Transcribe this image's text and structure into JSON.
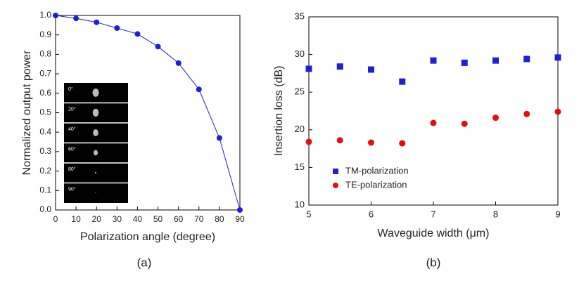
{
  "chart_data": [
    {
      "type": "line",
      "x_label": "Polarization angle (degree)",
      "y_label": "Normalized output power",
      "caption": "(a)",
      "x": [
        0,
        10,
        20,
        30,
        40,
        50,
        60,
        70,
        80,
        90
      ],
      "series": [
        {
          "color": "#1f1fd6",
          "values": [
            1.0,
            0.985,
            0.965,
            0.935,
            0.905,
            0.84,
            0.755,
            0.62,
            0.37,
            0.0
          ]
        }
      ],
      "xlim": [
        0,
        90
      ],
      "xticks": [
        0,
        10,
        20,
        30,
        40,
        50,
        60,
        70,
        80,
        90
      ],
      "ylim": [
        0,
        1.0
      ],
      "yticks": [
        {
          "value": 0,
          "label": "0.0"
        },
        0.1,
        0.2,
        0.3,
        0.4,
        0.5,
        0.6,
        0.7,
        0.8,
        0.9,
        {
          "value": 1.0,
          "label": "1.0"
        }
      ],
      "inset_labels": [
        "0°",
        "20°",
        "40°",
        "60°",
        "80°",
        "90°"
      ]
    },
    {
      "type": "scatter",
      "x_label": "Waveguide width (μm)",
      "y_label": "Insertion loss (dB)",
      "caption": "(b)",
      "x": [
        5,
        5.5,
        6,
        6.5,
        7,
        7.5,
        8,
        8.5,
        9
      ],
      "series": [
        {
          "name": "TM-polarization",
          "color": "#1f1fd6",
          "marker": "square",
          "values": [
            28.1,
            28.4,
            28.0,
            26.4,
            29.2,
            28.9,
            29.2,
            29.4,
            29.6
          ]
        },
        {
          "name": "TE-polarization",
          "color": "#e01010",
          "marker": "circle",
          "values": [
            18.4,
            18.6,
            18.3,
            18.2,
            20.9,
            20.8,
            21.6,
            22.1,
            22.4
          ]
        }
      ],
      "xlim": [
        5,
        9
      ],
      "xticks": [
        5,
        6,
        7,
        8,
        9
      ],
      "ylim": [
        10,
        35
      ],
      "yticks": [
        10,
        15,
        20,
        25,
        30,
        35
      ],
      "legend": "lower left"
    }
  ]
}
